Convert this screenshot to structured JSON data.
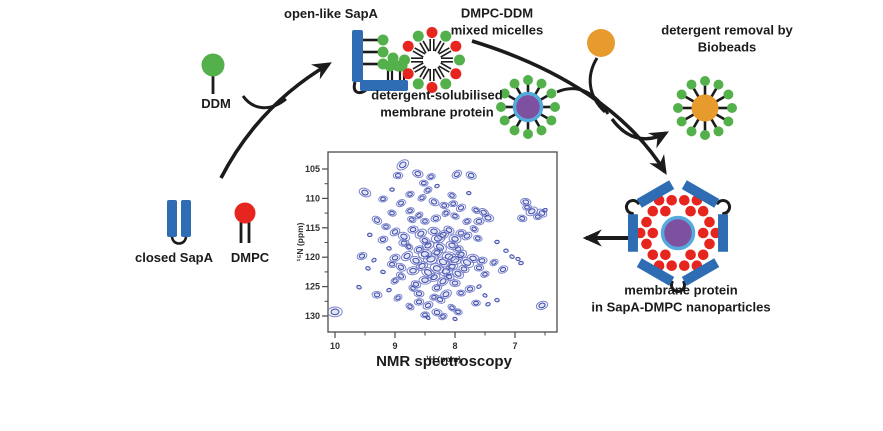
{
  "labels": {
    "open_sapa": "open-like SapA",
    "ddm": "DDM",
    "mixed_micelles_line1": "DMPC-DDM",
    "mixed_micelles_line2": "mixed micelles",
    "removal_line1": "detergent removal by",
    "removal_line2": "Biobeads",
    "solubilised_line1": "detergent-solubilised",
    "solubilised_line2": "membrane protein",
    "closed_sapa": "closed SapA",
    "dmpc": "DMPC",
    "nano_line1": "membrane protein",
    "nano_line2": "in SapA-DMPC nanoparticles",
    "nmr_caption": "NMR spectroscopy"
  },
  "colors": {
    "ink": "#1b1b1b",
    "blue": "#2e6db4",
    "green": "#53b04b",
    "red": "#e7251f",
    "orange": "#e69b2c",
    "purple": "#7e51a0",
    "lightblue": "#55aadd",
    "nmr_light": "#7c85cc",
    "nmr_dark": "#4350ae",
    "nmr_fill": "#5a64b9",
    "axis": "#4a4a4a"
  },
  "chart_data": {
    "type": "scatter",
    "title": "NMR spectroscopy",
    "xlabel": "¹H (ppm)",
    "ylabel": "¹⁵N (ppm)",
    "x_ticks": [
      10,
      9,
      8,
      7
    ],
    "x_minor_ticks": [
      9.5,
      8.5,
      7.5,
      6.5
    ],
    "y_ticks": [
      105,
      110,
      115,
      120,
      125,
      130
    ],
    "y_minor_ticks": [
      107.5,
      112.5,
      117.5,
      122.5,
      127.5
    ],
    "x_range": [
      10.12,
      6.3
    ],
    "y_range": [
      102.1,
      132.6
    ],
    "x_inverted": true,
    "y_inverted": true,
    "grid": false,
    "legend": false,
    "peaks": [
      [
        8.87,
        104.3,
        2
      ],
      [
        8.62,
        105.8,
        1.5
      ],
      [
        8.95,
        106.1,
        1.2
      ],
      [
        8.4,
        106.3,
        1
      ],
      [
        7.97,
        105.9,
        1.4
      ],
      [
        7.73,
        106.1,
        1.4
      ],
      [
        8.52,
        107.4,
        1
      ],
      [
        8.3,
        107.9,
        0.9
      ],
      [
        8.45,
        108.6,
        1
      ],
      [
        9.5,
        109.0,
        1.8
      ],
      [
        9.05,
        108.5,
        0.9
      ],
      [
        8.75,
        109.3,
        1
      ],
      [
        8.55,
        109.9,
        1
      ],
      [
        8.05,
        109.5,
        1
      ],
      [
        7.77,
        109.1,
        0.8
      ],
      [
        9.2,
        110.1,
        1
      ],
      [
        8.9,
        110.8,
        1.2
      ],
      [
        8.35,
        110.6,
        1.4
      ],
      [
        8.18,
        111.2,
        1.1
      ],
      [
        8.03,
        110.9,
        1
      ],
      [
        7.9,
        111.6,
        1.3
      ],
      [
        7.65,
        112.0,
        1
      ],
      [
        6.82,
        110.6,
        1.4
      ],
      [
        6.8,
        111.5,
        1
      ],
      [
        6.72,
        112.2,
        1.8
      ],
      [
        6.55,
        112.5,
        1.4
      ],
      [
        6.88,
        113.4,
        1.2
      ],
      [
        6.62,
        113.1,
        1
      ],
      [
        6.5,
        112.0,
        0.9
      ],
      [
        7.52,
        112.4,
        1.4
      ],
      [
        7.45,
        113.3,
        1.7
      ],
      [
        7.6,
        113.9,
        1.4
      ],
      [
        7.8,
        113.9,
        1
      ],
      [
        9.3,
        113.7,
        1.4
      ],
      [
        9.05,
        112.5,
        1
      ],
      [
        9.15,
        114.8,
        1
      ],
      [
        8.75,
        112.1,
        1
      ],
      [
        8.6,
        112.9,
        1
      ],
      [
        8.72,
        113.6,
        1
      ],
      [
        8.5,
        113.9,
        1
      ],
      [
        8.32,
        113.4,
        1.3
      ],
      [
        8.15,
        112.5,
        1
      ],
      [
        8.0,
        113.0,
        1
      ],
      [
        9.42,
        116.2,
        0.9
      ],
      [
        9.2,
        117.0,
        1.3
      ],
      [
        9.0,
        115.7,
        1.4
      ],
      [
        8.85,
        116.5,
        1.8
      ],
      [
        8.85,
        117.6,
        1.4
      ],
      [
        8.7,
        115.3,
        1.4
      ],
      [
        8.57,
        116.0,
        1.8
      ],
      [
        8.5,
        117.2,
        1.5
      ],
      [
        8.35,
        115.6,
        1.8
      ],
      [
        8.28,
        116.8,
        2.2
      ],
      [
        8.2,
        116.2,
        1.8
      ],
      [
        8.1,
        115.4,
        1.5
      ],
      [
        8.0,
        116.9,
        1.8
      ],
      [
        7.9,
        115.9,
        1.4
      ],
      [
        7.8,
        116.4,
        1.4
      ],
      [
        7.68,
        115.2,
        1
      ],
      [
        7.62,
        116.8,
        1
      ],
      [
        7.3,
        117.4,
        0.9
      ],
      [
        8.45,
        118.0,
        1.8
      ],
      [
        8.25,
        118.3,
        2.2
      ],
      [
        8.05,
        118.0,
        1.8
      ],
      [
        7.95,
        118.6,
        1.4
      ],
      [
        8.6,
        118.7,
        1.4
      ],
      [
        8.77,
        118.2,
        1
      ],
      [
        9.1,
        118.5,
        0.9
      ],
      [
        7.15,
        118.9,
        0.9
      ],
      [
        9.55,
        119.8,
        1.3
      ],
      [
        9.35,
        120.5,
        0.9
      ],
      [
        9.45,
        121.9,
        0.9
      ],
      [
        9.05,
        121.2,
        1.2
      ],
      [
        9.0,
        120.1,
        1.4
      ],
      [
        8.8,
        119.8,
        1.8
      ],
      [
        8.65,
        120.6,
        1.8
      ],
      [
        8.5,
        119.5,
        2.2
      ],
      [
        8.4,
        120.3,
        2.6
      ],
      [
        8.3,
        119.2,
        1.8
      ],
      [
        8.2,
        120.8,
        2.2
      ],
      [
        8.1,
        119.9,
        2.2
      ],
      [
        8.0,
        120.4,
        2.6
      ],
      [
        7.9,
        119.6,
        1.8
      ],
      [
        7.8,
        120.9,
        2.2
      ],
      [
        7.7,
        120.2,
        1.8
      ],
      [
        7.55,
        120.6,
        1.4
      ],
      [
        7.35,
        120.9,
        1
      ],
      [
        7.05,
        119.9,
        0.9
      ],
      [
        6.95,
        120.3,
        0.8
      ],
      [
        6.9,
        121.0,
        0.9
      ],
      [
        7.2,
        122.1,
        1.3
      ],
      [
        8.9,
        121.7,
        1.4
      ],
      [
        9.2,
        122.5,
        0.9
      ],
      [
        8.7,
        122.3,
        1.8
      ],
      [
        8.55,
        121.5,
        1.8
      ],
      [
        8.45,
        122.6,
        2.2
      ],
      [
        8.3,
        121.9,
        2.2
      ],
      [
        8.15,
        122.4,
        2.2
      ],
      [
        8.05,
        121.6,
        1.8
      ],
      [
        7.95,
        122.8,
        1.8
      ],
      [
        7.85,
        122.0,
        1.4
      ],
      [
        7.6,
        121.8,
        1.2
      ],
      [
        7.5,
        122.9,
        1
      ],
      [
        8.9,
        123.2,
        1.3
      ],
      [
        8.65,
        124.6,
        1.3
      ],
      [
        8.5,
        123.9,
        1.8
      ],
      [
        8.35,
        123.4,
        1.8
      ],
      [
        8.2,
        124.1,
        1.8
      ],
      [
        8.1,
        123.3,
        1.4
      ],
      [
        8.0,
        124.4,
        1.4
      ],
      [
        8.3,
        125.2,
        1.3
      ],
      [
        9.0,
        124.0,
        1
      ],
      [
        9.6,
        125.1,
        0.9
      ],
      [
        9.3,
        126.4,
        1.3
      ],
      [
        9.1,
        125.6,
        0.9
      ],
      [
        8.95,
        126.9,
        1
      ],
      [
        8.7,
        125.3,
        1
      ],
      [
        8.6,
        126.2,
        1.3
      ],
      [
        8.35,
        126.8,
        1
      ],
      [
        8.15,
        126.3,
        1.7
      ],
      [
        8.25,
        127.2,
        1.4
      ],
      [
        7.9,
        126.1,
        1
      ],
      [
        7.75,
        125.4,
        1.3
      ],
      [
        7.6,
        125.0,
        0.9
      ],
      [
        7.5,
        126.5,
        0.8
      ],
      [
        7.3,
        127.3,
        0.9
      ],
      [
        8.6,
        127.6,
        1.2
      ],
      [
        8.45,
        128.2,
        1.4
      ],
      [
        8.75,
        128.4,
        1
      ],
      [
        8.3,
        129.4,
        1.4
      ],
      [
        8.5,
        129.8,
        1
      ],
      [
        8.2,
        130.1,
        1
      ],
      [
        8.05,
        128.6,
        1
      ],
      [
        7.95,
        129.3,
        1
      ],
      [
        7.65,
        127.8,
        1
      ],
      [
        7.45,
        128.0,
        0.9
      ],
      [
        8.45,
        130.3,
        0.8
      ],
      [
        8.0,
        130.5,
        0.8
      ],
      [
        10.0,
        129.3,
        2.4
      ],
      [
        6.55,
        128.2,
        1.7
      ]
    ]
  }
}
